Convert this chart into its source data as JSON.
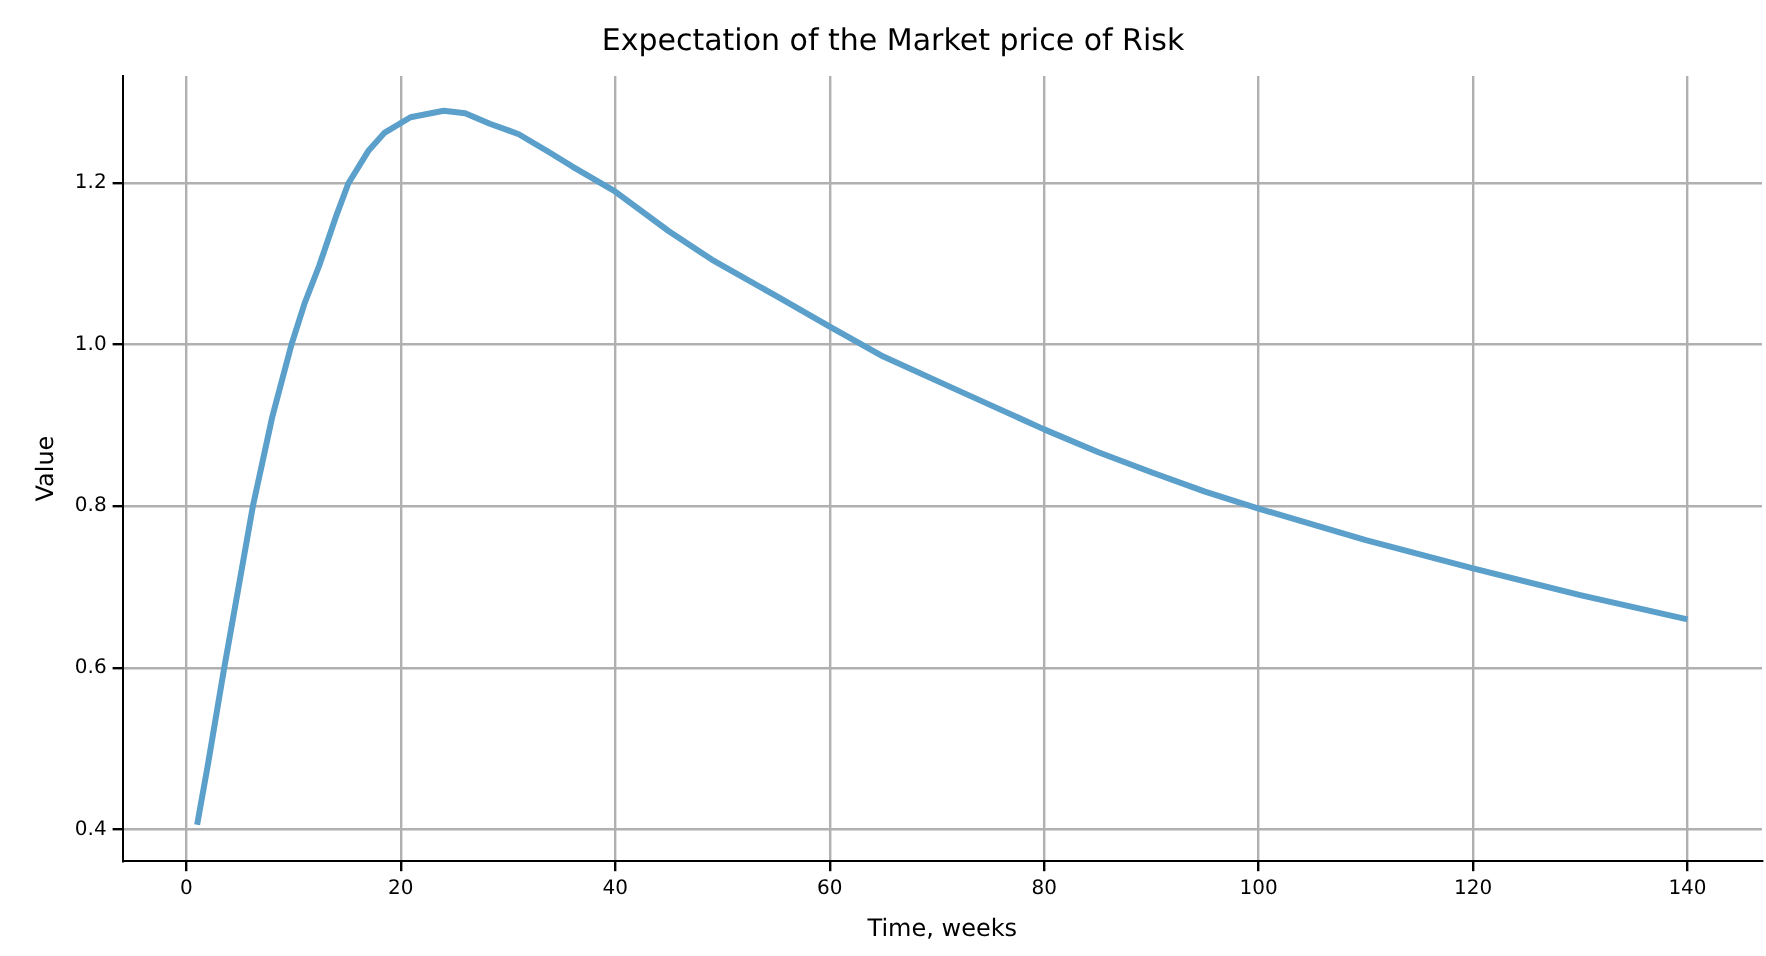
{
  "chart_data": {
    "type": "line",
    "title": "Expectation of the Market price of Risk",
    "xlabel": "Time, weeks",
    "ylabel": "Value",
    "x": [
      1,
      2,
      3.5,
      5,
      6.2,
      8,
      9.8,
      11,
      12.4,
      14,
      15.1,
      17,
      18.5,
      20.9,
      24,
      26,
      28.3,
      31,
      33.8,
      36,
      39.9,
      45,
      49,
      55,
      60,
      65,
      70,
      75,
      80,
      85,
      90,
      95,
      100,
      110,
      120,
      130,
      140
    ],
    "series": [
      {
        "color": "#5b9fcb",
        "values": [
          0.406,
          0.48,
          0.598,
          0.71,
          0.8,
          0.91,
          1.0,
          1.05,
          1.098,
          1.16,
          1.199,
          1.24,
          1.262,
          1.281,
          1.289,
          1.286,
          1.273,
          1.26,
          1.238,
          1.22,
          1.19,
          1.14,
          1.105,
          1.06,
          1.022,
          0.985,
          0.955,
          0.925,
          0.895,
          0.867,
          0.842,
          0.818,
          0.797,
          0.758,
          0.723,
          0.69,
          0.66
        ]
      }
    ],
    "xlim": [
      -5.95,
      146.95
    ],
    "xticks": [
      0,
      20,
      40,
      60,
      80,
      100,
      120,
      140
    ],
    "ylim": [
      0.361,
      1.332
    ],
    "yticks": [
      {
        "value": 0.4,
        "label": "0.4"
      },
      {
        "value": 0.6,
        "label": "0.6"
      },
      {
        "value": 0.8,
        "label": "0.8"
      },
      {
        "value": 1.0,
        "label": "1.0"
      },
      {
        "value": 1.2,
        "label": "1.2"
      }
    ],
    "grid": true,
    "marker": "none",
    "line_style": "solid"
  }
}
